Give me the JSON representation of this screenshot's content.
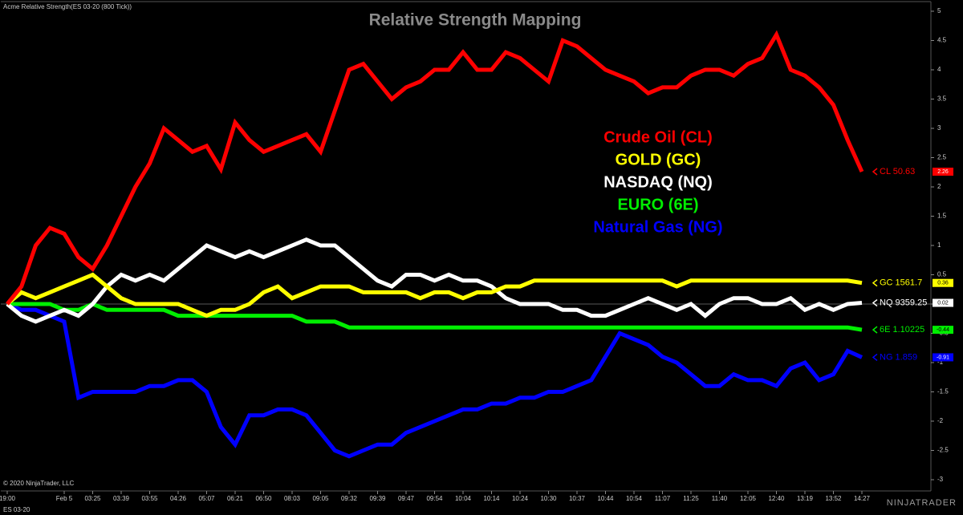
{
  "chart_data": {
    "type": "line",
    "title": "Relative Strength Mapping",
    "indicator": "Acme Relative Strength(ES 03-20 (800 Tick))",
    "instrument": "ES 03-20",
    "copyright": "© 2020 NinjaTrader, LLC",
    "logo": "NINJATRADER",
    "categories": [
      "19:00",
      null,
      null,
      null,
      "Feb 5",
      null,
      "03:25",
      null,
      "03:39",
      null,
      "03:55",
      null,
      "04:26",
      null,
      "05:07",
      null,
      "06:21",
      null,
      "06:50",
      null,
      "08:03",
      null,
      "09:05",
      null,
      "09:32",
      null,
      "09:39",
      null,
      "09:47",
      null,
      "09:54",
      null,
      "10:04",
      null,
      "10:14",
      null,
      "10:24",
      null,
      "10:30",
      null,
      "10:37",
      null,
      "10:44",
      null,
      "10:54",
      null,
      "11:07",
      null,
      "11:25",
      null,
      "11:40",
      null,
      "12:05",
      null,
      "12:40",
      null,
      "13:19",
      null,
      "13:52",
      null,
      "14:27"
    ],
    "ylim": [
      -3,
      5
    ],
    "yticks": [
      -3,
      -2.5,
      -2,
      -1.5,
      -1,
      -0.5,
      0,
      0.5,
      1,
      1.5,
      2,
      2.5,
      3,
      3.5,
      4,
      4.5,
      5
    ],
    "series": [
      {
        "name": "Crude Oil (CL)",
        "color": "#ff0000",
        "tag": "CL 50.63",
        "last": 2.26,
        "values": [
          0,
          0.3,
          1.0,
          1.3,
          1.2,
          0.8,
          0.6,
          1.0,
          1.5,
          2.0,
          2.4,
          3.0,
          2.8,
          2.6,
          2.7,
          2.3,
          3.1,
          2.8,
          2.6,
          2.7,
          2.8,
          2.9,
          2.6,
          3.3,
          4.0,
          4.1,
          3.8,
          3.5,
          3.7,
          3.8,
          4.0,
          4.0,
          4.3,
          4.0,
          4.0,
          4.3,
          4.2,
          4.0,
          3.8,
          4.5,
          4.4,
          4.2,
          4.0,
          3.9,
          3.8,
          3.6,
          3.7,
          3.7,
          3.9,
          4.0,
          4.0,
          3.9,
          4.1,
          4.2,
          4.6,
          4.0,
          3.9,
          3.7,
          3.4,
          2.8,
          2.26
        ]
      },
      {
        "name": "GOLD (GC)",
        "color": "#ffff00",
        "tag": "GC 1561.7",
        "last": 0.36,
        "values": [
          0,
          0.2,
          0.1,
          0.2,
          0.3,
          0.4,
          0.5,
          0.3,
          0.1,
          0,
          0,
          0,
          0,
          -0.1,
          -0.2,
          -0.1,
          -0.1,
          0,
          0.2,
          0.3,
          0.1,
          0.2,
          0.3,
          0.3,
          0.3,
          0.2,
          0.2,
          0.2,
          0.2,
          0.1,
          0.2,
          0.2,
          0.1,
          0.2,
          0.2,
          0.3,
          0.3,
          0.4,
          0.4,
          0.4,
          0.4,
          0.4,
          0.4,
          0.4,
          0.4,
          0.4,
          0.4,
          0.3,
          0.4,
          0.4,
          0.4,
          0.4,
          0.4,
          0.4,
          0.4,
          0.4,
          0.4,
          0.4,
          0.4,
          0.4,
          0.36
        ]
      },
      {
        "name": "NASDAQ (NQ)",
        "color": "#ffffff",
        "tag": "NQ 9359.25",
        "last": 0.02,
        "values": [
          0,
          -0.2,
          -0.3,
          -0.2,
          -0.1,
          -0.2,
          0,
          0.3,
          0.5,
          0.4,
          0.5,
          0.4,
          0.6,
          0.8,
          1.0,
          0.9,
          0.8,
          0.9,
          0.8,
          0.9,
          1.0,
          1.1,
          1.0,
          1.0,
          0.8,
          0.6,
          0.4,
          0.3,
          0.5,
          0.5,
          0.4,
          0.5,
          0.4,
          0.4,
          0.3,
          0.1,
          0,
          0,
          0,
          -0.1,
          -0.1,
          -0.2,
          -0.2,
          -0.1,
          0,
          0.1,
          0,
          -0.1,
          0,
          -0.2,
          0,
          0.1,
          0.1,
          0,
          0,
          0.1,
          -0.1,
          0,
          -0.1,
          0,
          0.02
        ]
      },
      {
        "name": "EURO (6E)",
        "color": "#00ee00",
        "tag": "6E 1.10225",
        "last": -0.44,
        "values": [
          0,
          0,
          0,
          0,
          -0.1,
          -0.1,
          0,
          -0.1,
          -0.1,
          -0.1,
          -0.1,
          -0.1,
          -0.2,
          -0.2,
          -0.2,
          -0.2,
          -0.2,
          -0.2,
          -0.2,
          -0.2,
          -0.2,
          -0.3,
          -0.3,
          -0.3,
          -0.4,
          -0.4,
          -0.4,
          -0.4,
          -0.4,
          -0.4,
          -0.4,
          -0.4,
          -0.4,
          -0.4,
          -0.4,
          -0.4,
          -0.4,
          -0.4,
          -0.4,
          -0.4,
          -0.4,
          -0.4,
          -0.4,
          -0.4,
          -0.4,
          -0.4,
          -0.4,
          -0.4,
          -0.4,
          -0.4,
          -0.4,
          -0.4,
          -0.4,
          -0.4,
          -0.4,
          -0.4,
          -0.4,
          -0.4,
          -0.4,
          -0.4,
          -0.44
        ]
      },
      {
        "name": "Natural Gas (NG)",
        "color": "#0000ff",
        "tag": "NG 1.859",
        "last": -0.91,
        "values": [
          0,
          -0.1,
          -0.1,
          -0.2,
          -0.3,
          -1.6,
          -1.5,
          -1.5,
          -1.5,
          -1.5,
          -1.4,
          -1.4,
          -1.3,
          -1.3,
          -1.5,
          -2.1,
          -2.4,
          -1.9,
          -1.9,
          -1.8,
          -1.8,
          -1.9,
          -2.2,
          -2.5,
          -2.6,
          -2.5,
          -2.4,
          -2.4,
          -2.2,
          -2.1,
          -2.0,
          -1.9,
          -1.8,
          -1.8,
          -1.7,
          -1.7,
          -1.6,
          -1.6,
          -1.5,
          -1.5,
          -1.4,
          -1.3,
          -0.9,
          -0.5,
          -0.6,
          -0.7,
          -0.9,
          -1.0,
          -1.2,
          -1.4,
          -1.4,
          -1.2,
          -1.3,
          -1.3,
          -1.4,
          -1.1,
          -1.0,
          -1.3,
          -1.2,
          -0.8,
          -0.91
        ]
      }
    ]
  }
}
